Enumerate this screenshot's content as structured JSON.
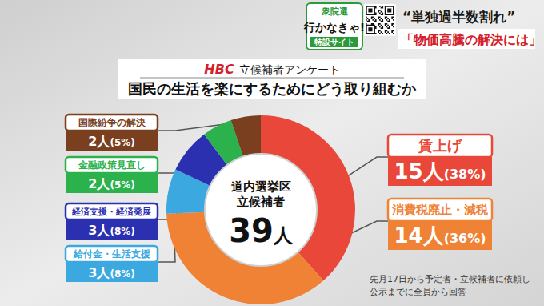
{
  "header": {
    "badge": [
      "衆院選",
      "行かなきゃ!",
      "特設サイト"
    ],
    "headlines": [
      "“単独過半数割れ”",
      "「物価高騰の解決には」"
    ]
  },
  "chart_data": {
    "type": "donut",
    "logo": "HBC",
    "subtitle": "立候補者アンケート",
    "title": "国民の生活を楽にするためにどう取り組むか",
    "categories": [
      "賃上げ",
      "消費税廃止・減税",
      "給付金・生活支援",
      "経済支援・経済発展",
      "金融政策見直し",
      "国際紛争の解決"
    ],
    "values": [
      15,
      14,
      3,
      3,
      2,
      2
    ],
    "value_labels": [
      "15人(38%)",
      "14人(36%)",
      "3人(8%)",
      "3人(8%)",
      "2人(5%)",
      "2人(5%)"
    ],
    "colors": [
      "#e8473a",
      "#f08236",
      "#3ba9e0",
      "#2b30b0",
      "#2bb24c",
      "#7a3f1f"
    ],
    "data_labels": true,
    "center": {
      "lines": [
        "道内選挙区",
        "立候補者"
      ],
      "total": {
        "value": 39,
        "label": "39人"
      }
    }
  },
  "footnote": [
    "先月17日から予定者・立候補者に依頼し",
    "公示までに全員から回答"
  ]
}
